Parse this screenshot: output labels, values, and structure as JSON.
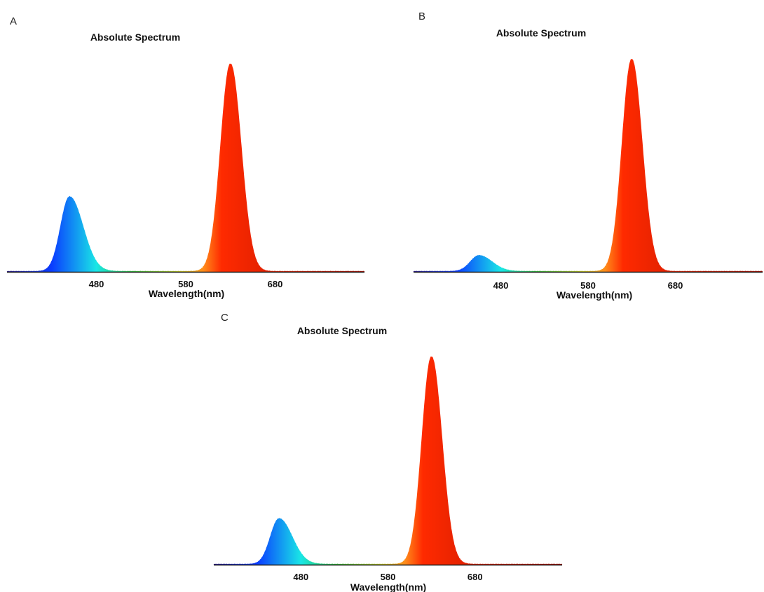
{
  "chart_data": [
    {
      "type": "area",
      "panel": "A",
      "title": "Absolute Spectrum",
      "xlabel": "Wavelength(nm)",
      "ylabel": "",
      "xticks": [
        480,
        580,
        680
      ],
      "xlim": [
        380,
        780
      ],
      "ylim": [
        0,
        1.06
      ],
      "grid": false,
      "legend": "none",
      "peaks": [
        {
          "center": 450,
          "height": 0.36,
          "sigma_left": 10,
          "sigma_right": 15
        },
        {
          "center": 630,
          "height": 1.0,
          "sigma_left": 11,
          "sigma_right": 12
        }
      ]
    },
    {
      "type": "area",
      "panel": "B",
      "title": "Absolute Spectrum",
      "xlabel": "Wavelength(nm)",
      "ylabel": "",
      "xticks": [
        480,
        580,
        680
      ],
      "xlim": [
        380,
        780
      ],
      "ylim": [
        0,
        1.06
      ],
      "grid": false,
      "legend": "none",
      "peaks": [
        {
          "center": 455,
          "height": 0.075,
          "sigma_left": 10,
          "sigma_right": 15
        },
        {
          "center": 630,
          "height": 1.0,
          "sigma_left": 11,
          "sigma_right": 12
        }
      ]
    },
    {
      "type": "area",
      "panel": "C",
      "title": "Absolute Spectrum",
      "xlabel": "Wavelength(nm)",
      "ylabel": "",
      "xticks": [
        480,
        580,
        680
      ],
      "xlim": [
        380,
        780
      ],
      "ylim": [
        0,
        1.06
      ],
      "grid": false,
      "legend": "none",
      "peaks": [
        {
          "center": 455,
          "height": 0.22,
          "sigma_left": 10,
          "sigma_right": 15
        },
        {
          "center": 630,
          "height": 1.0,
          "sigma_left": 11,
          "sigma_right": 12
        }
      ]
    }
  ],
  "colors": {
    "violet": "#2a1a8c",
    "blue": "#0a3cff",
    "cyan": "#19e6e6",
    "green": "#2fbf3a",
    "yellow": "#c8c81e",
    "orange": "#ff8a1a",
    "red": "#ff2a00",
    "deep_red": "#a50e00",
    "baseline": "#1a1a1a"
  }
}
